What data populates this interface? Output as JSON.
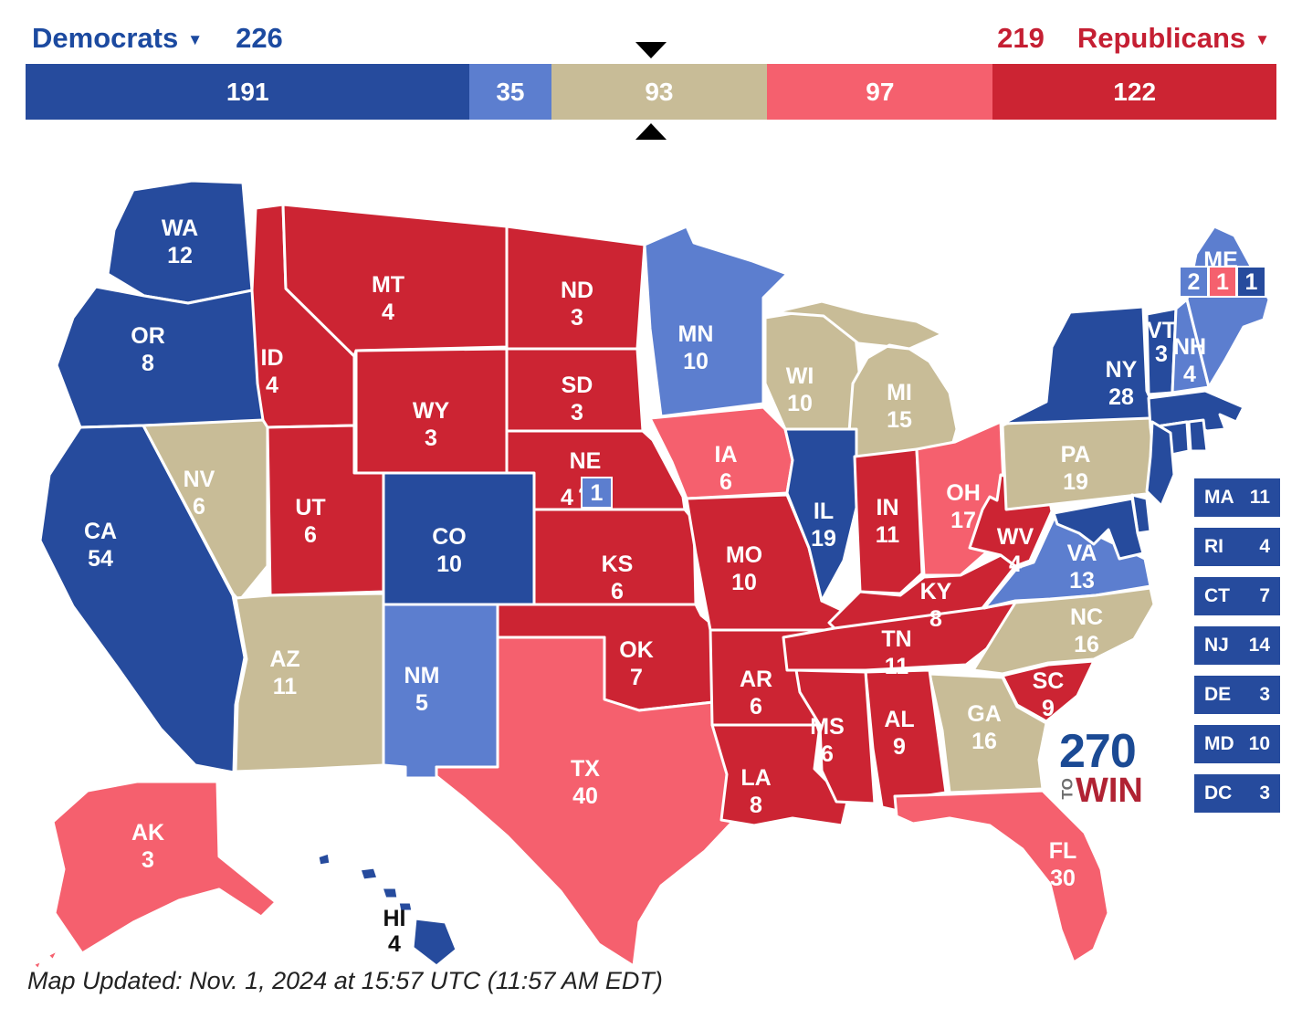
{
  "colors": {
    "safe_dem": "#264B9D",
    "likely_dem": "#5C7ECF",
    "tossup": "#C8BC97",
    "likely_rep": "#F5606E",
    "safe_rep": "#CC2433",
    "dem_text": "#1C4AA0",
    "rep_text": "#C51F33",
    "hi_label": "#111111"
  },
  "header": {
    "democrats": {
      "label": "Democrats",
      "dropdown_arrow": "▼",
      "total": "226"
    },
    "republicans": {
      "label": "Republicans",
      "dropdown_arrow": "▼",
      "total": "219"
    }
  },
  "bar": {
    "segments": [
      {
        "name": "safe-dem",
        "value": 191,
        "rating": "safe_dem"
      },
      {
        "name": "likely-dem",
        "value": 35,
        "rating": "likely_dem"
      },
      {
        "name": "tossup",
        "value": 93,
        "rating": "tossup"
      },
      {
        "name": "likely-rep",
        "value": 97,
        "rating": "likely_rep"
      },
      {
        "name": "safe-rep",
        "value": 122,
        "rating": "safe_rep"
      }
    ],
    "tie_marker": "269-270 line"
  },
  "map": {
    "states": [
      {
        "abbr": "WA",
        "ev": 12,
        "rating": "safe_dem",
        "show_label": true
      },
      {
        "abbr": "OR",
        "ev": 8,
        "rating": "safe_dem",
        "show_label": true
      },
      {
        "abbr": "CA",
        "ev": 54,
        "rating": "safe_dem",
        "show_label": true
      },
      {
        "abbr": "NV",
        "ev": 6,
        "rating": "tossup",
        "show_label": true
      },
      {
        "abbr": "ID",
        "ev": 4,
        "rating": "safe_rep",
        "show_label": true
      },
      {
        "abbr": "MT",
        "ev": 4,
        "rating": "safe_rep",
        "show_label": true
      },
      {
        "abbr": "WY",
        "ev": 3,
        "rating": "safe_rep",
        "show_label": true
      },
      {
        "abbr": "UT",
        "ev": 6,
        "rating": "safe_rep",
        "show_label": true
      },
      {
        "abbr": "CO",
        "ev": 10,
        "rating": "safe_dem",
        "show_label": true
      },
      {
        "abbr": "AZ",
        "ev": 11,
        "rating": "tossup",
        "show_label": true
      },
      {
        "abbr": "NM",
        "ev": 5,
        "rating": "likely_dem",
        "show_label": true
      },
      {
        "abbr": "ND",
        "ev": 3,
        "rating": "safe_rep",
        "show_label": true
      },
      {
        "abbr": "SD",
        "ev": 3,
        "rating": "safe_rep",
        "show_label": true
      },
      {
        "abbr": "NE",
        "ev": 4,
        "rating": "safe_rep",
        "show_label": true,
        "district_note": "NE-2 box"
      },
      {
        "abbr": "KS",
        "ev": 6,
        "rating": "safe_rep",
        "show_label": true
      },
      {
        "abbr": "OK",
        "ev": 7,
        "rating": "safe_rep",
        "show_label": true
      },
      {
        "abbr": "TX",
        "ev": 40,
        "rating": "likely_rep",
        "show_label": true
      },
      {
        "abbr": "MN",
        "ev": 10,
        "rating": "likely_dem",
        "show_label": true
      },
      {
        "abbr": "IA",
        "ev": 6,
        "rating": "likely_rep",
        "show_label": true
      },
      {
        "abbr": "MO",
        "ev": 10,
        "rating": "safe_rep",
        "show_label": true
      },
      {
        "abbr": "AR",
        "ev": 6,
        "rating": "safe_rep",
        "show_label": true
      },
      {
        "abbr": "LA",
        "ev": 8,
        "rating": "safe_rep",
        "show_label": true
      },
      {
        "abbr": "WI",
        "ev": 10,
        "rating": "tossup",
        "show_label": true
      },
      {
        "abbr": "MI",
        "ev": 15,
        "rating": "tossup",
        "show_label": true
      },
      {
        "abbr": "IL",
        "ev": 19,
        "rating": "safe_dem",
        "show_label": true
      },
      {
        "abbr": "IN",
        "ev": 11,
        "rating": "safe_rep",
        "show_label": true
      },
      {
        "abbr": "OH",
        "ev": 17,
        "rating": "likely_rep",
        "show_label": true
      },
      {
        "abbr": "KY",
        "ev": 8,
        "rating": "safe_rep",
        "show_label": true
      },
      {
        "abbr": "TN",
        "ev": 11,
        "rating": "safe_rep",
        "show_label": true
      },
      {
        "abbr": "WV",
        "ev": 4,
        "rating": "safe_rep",
        "show_label": true
      },
      {
        "abbr": "VA",
        "ev": 13,
        "rating": "likely_dem",
        "show_label": true
      },
      {
        "abbr": "NC",
        "ev": 16,
        "rating": "tossup",
        "show_label": true
      },
      {
        "abbr": "SC",
        "ev": 9,
        "rating": "safe_rep",
        "show_label": true
      },
      {
        "abbr": "GA",
        "ev": 16,
        "rating": "tossup",
        "show_label": true
      },
      {
        "abbr": "AL",
        "ev": 9,
        "rating": "safe_rep",
        "show_label": true
      },
      {
        "abbr": "MS",
        "ev": 6,
        "rating": "safe_rep",
        "show_label": true
      },
      {
        "abbr": "FL",
        "ev": 30,
        "rating": "likely_rep",
        "show_label": true
      },
      {
        "abbr": "PA",
        "ev": 19,
        "rating": "tossup",
        "show_label": true
      },
      {
        "abbr": "NY",
        "ev": 28,
        "rating": "safe_dem",
        "show_label": true
      },
      {
        "abbr": "VT",
        "ev": 3,
        "rating": "safe_dem",
        "show_label": true
      },
      {
        "abbr": "NH",
        "ev": 4,
        "rating": "likely_dem",
        "show_label": true
      },
      {
        "abbr": "ME",
        "ev": 2,
        "rating": "likely_dem",
        "show_label": true,
        "label_ev_hidden": true
      },
      {
        "abbr": "MA",
        "ev": 11,
        "rating": "safe_dem",
        "show_label": false
      },
      {
        "abbr": "CT",
        "ev": 7,
        "rating": "safe_dem",
        "show_label": false
      },
      {
        "abbr": "RI",
        "ev": 4,
        "rating": "safe_dem",
        "show_label": false
      },
      {
        "abbr": "NJ",
        "ev": 14,
        "rating": "safe_dem",
        "show_label": false
      },
      {
        "abbr": "DE",
        "ev": 3,
        "rating": "safe_dem",
        "show_label": false
      },
      {
        "abbr": "MD",
        "ev": 10,
        "rating": "safe_dem",
        "show_label": false
      },
      {
        "abbr": "AK",
        "ev": 3,
        "rating": "likely_rep",
        "show_label": true
      },
      {
        "abbr": "HI",
        "ev": 4,
        "rating": "safe_dem",
        "show_label": true,
        "label_dark": true
      }
    ],
    "me_districts": [
      {
        "value": "2",
        "rating": "likely_dem"
      },
      {
        "value": "1",
        "rating": "likely_rep"
      },
      {
        "value": "1",
        "rating": "safe_dem"
      }
    ],
    "ne_district": {
      "value": "1",
      "rating": "likely_dem"
    }
  },
  "sidebar_list": [
    {
      "abbr": "MA",
      "ev": 11,
      "rating": "safe_dem"
    },
    {
      "abbr": "RI",
      "ev": 4,
      "rating": "safe_dem"
    },
    {
      "abbr": "CT",
      "ev": 7,
      "rating": "safe_dem"
    },
    {
      "abbr": "NJ",
      "ev": 14,
      "rating": "safe_dem"
    },
    {
      "abbr": "DE",
      "ev": 3,
      "rating": "safe_dem"
    },
    {
      "abbr": "MD",
      "ev": 10,
      "rating": "safe_dem"
    },
    {
      "abbr": "DC",
      "ev": 3,
      "rating": "safe_dem"
    }
  ],
  "logo": {
    "line1": "270",
    "to": "TO",
    "win": "WIN",
    "color_270": "#1B4A94",
    "color_to": "#6E6E6E",
    "color_win": "#B02233"
  },
  "footer": {
    "updated_text": "Map Updated: Nov. 1, 2024 at 15:57 UTC (11:57 AM EDT)"
  }
}
